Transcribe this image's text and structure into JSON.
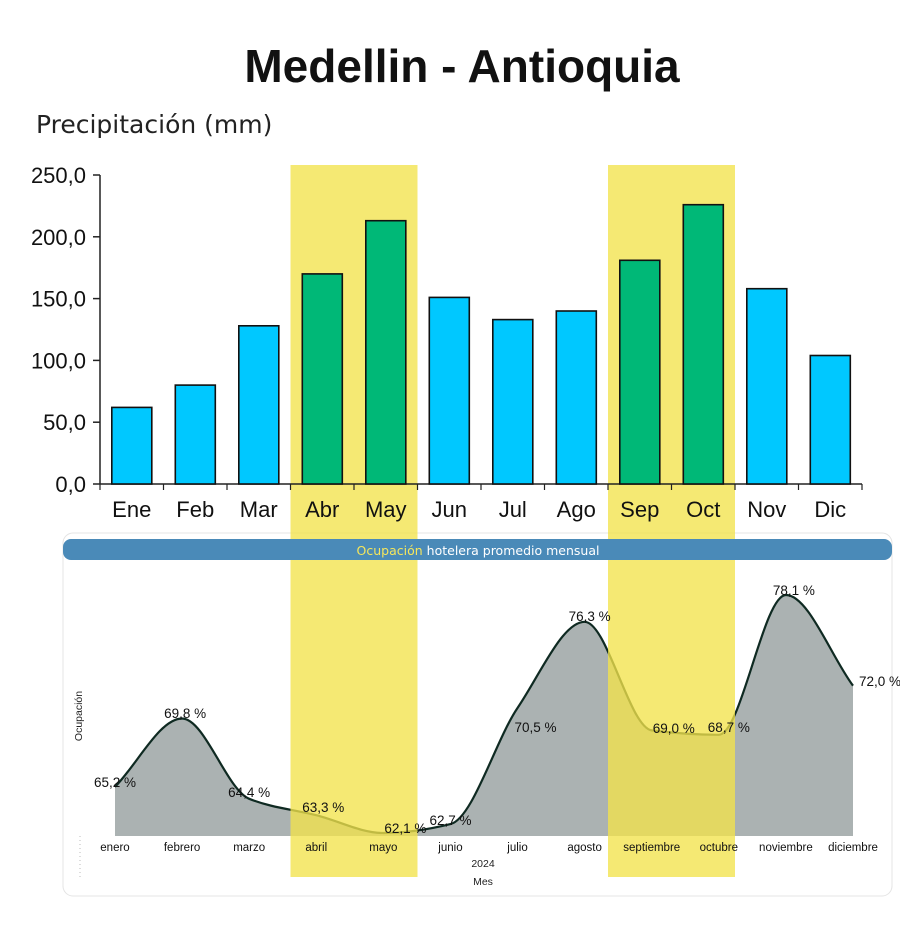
{
  "header": {
    "title": "Medellin - Antioquia"
  },
  "colors": {
    "highlight": "#f2e34b",
    "bar_regular": "#00c8ff",
    "bar_highlight": "#00b877",
    "area_fill": "#8a9494",
    "banner": "#4a8ab8",
    "banner_accent": "#f5e65c"
  },
  "chart_data": [
    {
      "type": "bar",
      "title": "Precipitación (mm)",
      "categories": [
        "Ene",
        "Feb",
        "Mar",
        "Abr",
        "May",
        "Jun",
        "Jul",
        "Ago",
        "Sep",
        "Oct",
        "Nov",
        "Dic"
      ],
      "values": [
        62,
        80,
        128,
        170,
        213,
        151,
        133,
        140,
        181,
        226,
        158,
        104
      ],
      "highlighted_categories": [
        "Abr",
        "May",
        "Sep",
        "Oct"
      ],
      "ylim": [
        0,
        250
      ],
      "yticks": [
        "0,0",
        "50,0",
        "100,0",
        "150,0",
        "200,0",
        "250,0"
      ],
      "grid": false
    },
    {
      "type": "area",
      "title_part1": "Ocupación",
      "title_part2": " hotelera promedio mensual",
      "categories": [
        "enero",
        "febrero",
        "marzo",
        "abril",
        "mayo",
        "junio",
        "julio",
        "agosto",
        "septiembre",
        "octubre",
        "noviembre",
        "diciembre"
      ],
      "values": [
        65.2,
        69.8,
        64.4,
        63.3,
        62.1,
        62.7,
        70.5,
        76.3,
        69.0,
        68.7,
        78.1,
        72.0
      ],
      "labels": [
        "65,2 %",
        "69,8 %",
        "64,4 %",
        "63,3 %",
        "62,1 %",
        "62,7 %",
        "70,5 %",
        "76,3 %",
        "69,0 %",
        "68,7 %",
        "78,1 %",
        "72,0 %"
      ],
      "ylabel": "Ocupación",
      "xlabel": "Mes",
      "year": "2024"
    }
  ]
}
